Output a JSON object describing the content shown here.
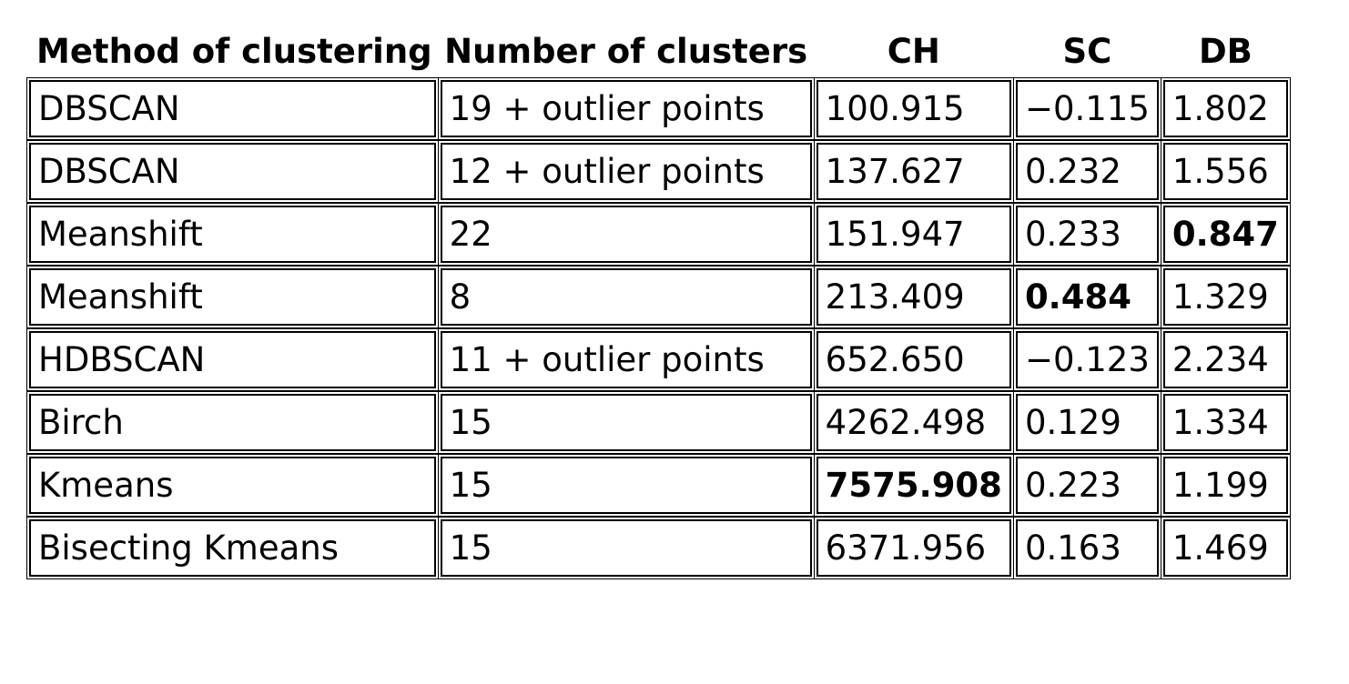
{
  "chart_data": {
    "type": "table",
    "columns": [
      "Method of clustering",
      "Number of clusters",
      "CH",
      "SC",
      "DB"
    ],
    "rows": [
      {
        "method": "DBSCAN",
        "clusters": "19 + outlier points",
        "ch": "100.915",
        "sc": "−0.115",
        "db": "1.802"
      },
      {
        "method": "DBSCAN",
        "clusters": "12 + outlier points",
        "ch": "137.627",
        "sc": "0.232",
        "db": "1.556"
      },
      {
        "method": "Meanshift",
        "clusters": "22",
        "ch": "151.947",
        "sc": "0.233",
        "db": "0.847"
      },
      {
        "method": "Meanshift",
        "clusters": "8",
        "ch": "213.409",
        "sc": "0.484",
        "db": "1.329"
      },
      {
        "method": "HDBSCAN",
        "clusters": "11 + outlier points",
        "ch": "652.650",
        "sc": "−0.123",
        "db": "2.234"
      },
      {
        "method": "Birch",
        "clusters": "15",
        "ch": "4262.498",
        "sc": "0.129",
        "db": "1.334"
      },
      {
        "method": "Kmeans",
        "clusters": "15",
        "ch": "7575.908",
        "sc": "0.223",
        "db": "1.199"
      },
      {
        "method": "Bisecting Kmeans",
        "clusters": "15",
        "ch": "6371.956",
        "sc": "0.163",
        "db": "1.469"
      }
    ],
    "bold_cells": {
      "ch": 6,
      "sc": 3,
      "db": 2
    }
  }
}
